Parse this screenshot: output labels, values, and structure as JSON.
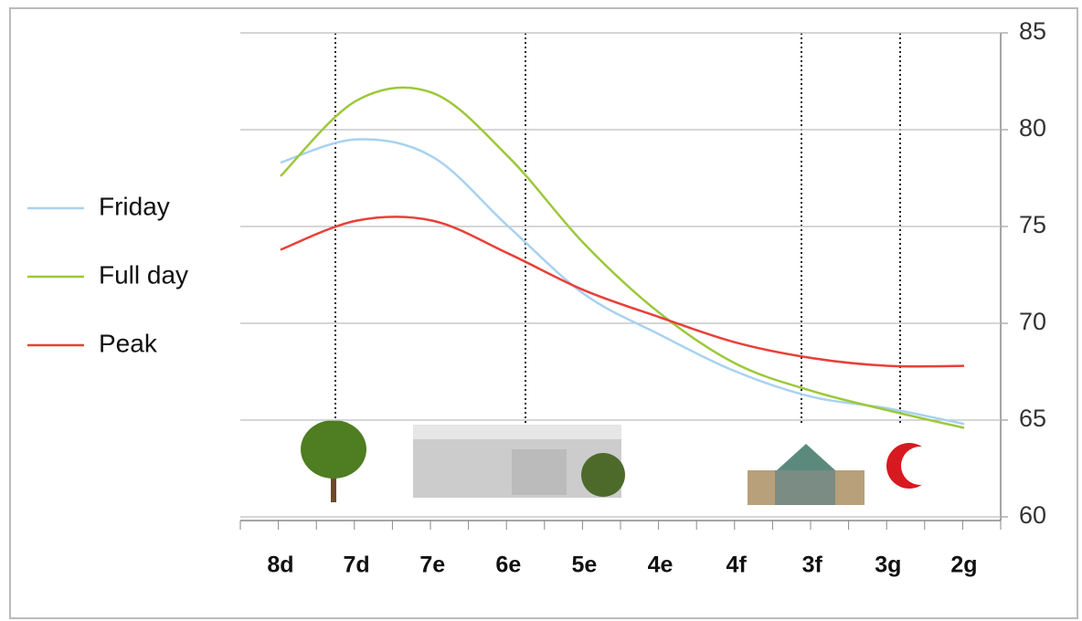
{
  "chart_data": {
    "type": "line",
    "categories": [
      "8d",
      "7d",
      "7e",
      "6e",
      "5e",
      "4e",
      "4f",
      "3f",
      "3g",
      "2g"
    ],
    "series": [
      {
        "name": "Friday",
        "color": "#a8d2f0",
        "values": [
          78.3,
          79.5,
          78.6,
          75.0,
          71.5,
          69.4,
          67.5,
          66.2,
          65.6,
          64.8
        ]
      },
      {
        "name": "Full day",
        "color": "#9cc83a",
        "values": [
          77.6,
          81.5,
          81.9,
          78.6,
          74.1,
          70.5,
          67.9,
          66.5,
          65.5,
          64.6
        ]
      },
      {
        "name": "Peak",
        "color": "#e84038",
        "values": [
          73.8,
          75.3,
          75.3,
          73.6,
          71.7,
          70.3,
          69.0,
          68.2,
          67.8,
          67.8
        ]
      }
    ],
    "ylim": [
      60,
      85
    ],
    "yticks": [
      60,
      65,
      70,
      75,
      80,
      85
    ],
    "grid": true,
    "legend": "left"
  }
}
